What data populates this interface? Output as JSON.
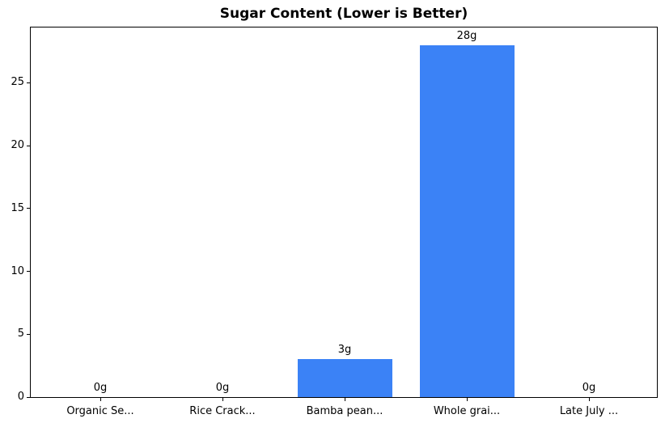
{
  "colors": {
    "bar": "#3B82F6",
    "axis": "#000000",
    "background": "#FFFFFF",
    "text": "#000000"
  },
  "chart_data": {
    "type": "bar",
    "title": "Sugar Content (Lower is Better)",
    "categories": [
      "Organic Se...",
      "Rice Crack...",
      "Bamba pean...",
      "Whole grai...",
      "Late July ..."
    ],
    "values": [
      0,
      0,
      3,
      28,
      0
    ],
    "value_labels": [
      "0g",
      "0g",
      "3g",
      "28g",
      "0g"
    ],
    "xlabel": "",
    "ylabel": "",
    "ylim": [
      0,
      29.4
    ],
    "yticks": [
      0,
      5,
      10,
      15,
      20,
      25
    ],
    "grid": false,
    "legend": false
  }
}
